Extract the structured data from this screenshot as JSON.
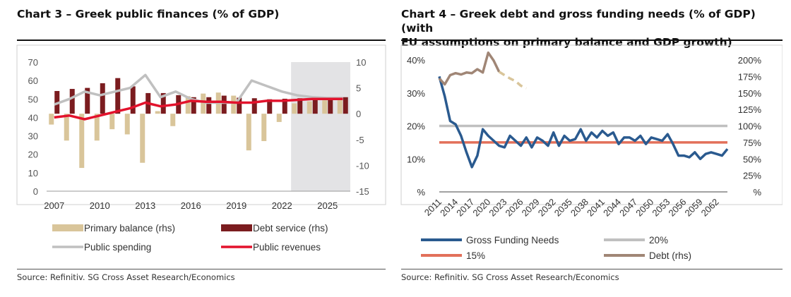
{
  "left_chart": {
    "title": "Chart 3 – Greek public finances (% of GDP)",
    "source": "Source: Refinitiv. SG Cross Asset Research/Economics",
    "colors": {
      "primary_balance": "#d9c59a",
      "debt_service": "#7b1c1f",
      "spending": "#c0c0c0",
      "revenues": "#e3122c",
      "forecast_shade": "#e3e3e5"
    },
    "chart_data": {
      "type": "bar+line",
      "x": [
        2007,
        2008,
        2009,
        2010,
        2011,
        2012,
        2013,
        2014,
        2015,
        2016,
        2017,
        2018,
        2019,
        2020,
        2021,
        2022,
        2023,
        2024,
        2025,
        2026
      ],
      "xticks": [
        "2007",
        "2010",
        "2013",
        "2016",
        "2019",
        "2022",
        "2025"
      ],
      "left_axis": {
        "ylim": [
          0,
          70
        ],
        "ticks": [
          "0",
          "10",
          "20",
          "30",
          "40",
          "50",
          "60",
          "70"
        ]
      },
      "right_axis": {
        "ylim": [
          -15,
          10
        ],
        "ticks": [
          "-15",
          "-10",
          "-5",
          "0",
          "5",
          "10"
        ]
      },
      "forecast_start": 2022.6,
      "series": [
        {
          "name": "Primary balance (rhs)",
          "type": "bar",
          "axis": "right",
          "values": [
            -2.1,
            -5.2,
            -10.5,
            -5.2,
            -3.0,
            -4.0,
            -9.5,
            0.5,
            -2.4,
            3.4,
            3.9,
            4.1,
            3.5,
            -7.1,
            -5.3,
            -1.6,
            2.0,
            2.4,
            2.6,
            2.6
          ]
        },
        {
          "name": "Debt service (rhs)",
          "type": "bar",
          "axis": "right",
          "values": [
            4.4,
            4.8,
            5.0,
            5.9,
            6.9,
            5.3,
            4.0,
            4.0,
            3.6,
            3.2,
            3.2,
            3.5,
            3.1,
            3.0,
            2.8,
            2.9,
            3.0,
            3.2,
            3.2,
            3.2
          ]
        },
        {
          "name": "Public spending",
          "type": "line",
          "axis": "left",
          "values": [
            47,
            50,
            54,
            52,
            54,
            56,
            63,
            51,
            54,
            50,
            48,
            48,
            48,
            60,
            57,
            54,
            52,
            51,
            50.5,
            50.5
          ]
        },
        {
          "name": "Public revenues",
          "type": "line",
          "axis": "left",
          "values": [
            40,
            41,
            39,
            41,
            43,
            45,
            48,
            46,
            47,
            49,
            48.5,
            48.5,
            48,
            48,
            49,
            49,
            49.5,
            50,
            50,
            50
          ]
        }
      ]
    }
  },
  "right_chart": {
    "title_line1": "Chart 4 – Greek debt and gross funding needs (% of GDP) (with",
    "title_line2": "EU assumptions on primary balance and GDP growth)",
    "source": "Source: Refinitiv. SG Cross Asset Research/Economics",
    "colors": {
      "gfn": "#2a5a8f",
      "twenty": "#c0c0c0",
      "fifteen": "#e2705a",
      "debt": "#a08676"
    },
    "chart_data": {
      "type": "line",
      "x_start": 2011,
      "x_end": 2064,
      "xticks": [
        "2011",
        "2014",
        "2017",
        "2020",
        "2023",
        "2026",
        "2029",
        "2032",
        "2035",
        "2038",
        "2041",
        "2044",
        "2047",
        "2050",
        "2053",
        "2056",
        "2059",
        "2062"
      ],
      "left_axis": {
        "ylim": [
          0,
          40
        ],
        "ticks": [
          "%",
          "10%",
          "20%",
          "30%",
          "40%"
        ]
      },
      "right_axis": {
        "ylim": [
          0,
          200
        ],
        "ticks": [
          "%",
          "25%",
          "50%",
          "75%",
          "100%",
          "125%",
          "150%",
          "175%",
          "200%"
        ]
      },
      "series": [
        {
          "name": "Gross Funding Needs",
          "axis": "left",
          "x": [
            2011,
            2012,
            2013,
            2014,
            2015,
            2016,
            2017,
            2018,
            2019,
            2020,
            2021,
            2022,
            2023,
            2024,
            2025,
            2026,
            2027,
            2028,
            2029,
            2030,
            2031,
            2032,
            2033,
            2034,
            2035,
            2036,
            2037,
            2038,
            2039,
            2040,
            2041,
            2042,
            2043,
            2044,
            2045,
            2046,
            2047,
            2048,
            2049,
            2050,
            2051,
            2052,
            2053,
            2054,
            2055,
            2056,
            2057,
            2058,
            2059,
            2060,
            2061,
            2062,
            2063,
            2064
          ],
          "values": [
            35,
            29,
            21.5,
            20.5,
            17,
            12,
            7.5,
            11,
            19,
            17,
            15.5,
            14,
            13.5,
            17,
            15.5,
            14,
            16.5,
            13.5,
            16.5,
            15.5,
            14,
            18,
            14,
            17,
            15.5,
            16,
            19,
            15.5,
            18,
            16.5,
            18.5,
            17,
            18,
            14.5,
            16.5,
            16.5,
            15.5,
            17,
            14.5,
            16.5,
            16,
            15.5,
            17.5,
            14.5,
            11,
            11,
            10.5,
            12,
            10,
            11.5,
            12,
            11.5,
            11,
            13
          ]
        },
        {
          "name": "20%",
          "axis": "left",
          "x": [
            2011,
            2064
          ],
          "values": [
            20,
            20
          ]
        },
        {
          "name": "15%",
          "axis": "left",
          "x": [
            2011,
            2064
          ],
          "values": [
            15,
            15
          ]
        },
        {
          "name": "Debt (rhs)",
          "axis": "right",
          "x": [
            2011,
            2012,
            2013,
            2014,
            2015,
            2016,
            2017,
            2018,
            2019,
            2020,
            2021,
            2022,
            2023,
            2024,
            2025,
            2026,
            2027
          ],
          "values": [
            172,
            163,
            177,
            180,
            178,
            181,
            180,
            186,
            181,
            211,
            199,
            182,
            177,
            172,
            168,
            161,
            157
          ],
          "dashed_from": 2022
        }
      ]
    }
  }
}
